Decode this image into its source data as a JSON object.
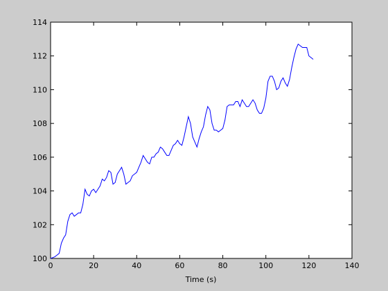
{
  "chart_data": {
    "type": "line",
    "xlabel": "Time (s)",
    "x": [
      0,
      1,
      2,
      3,
      4,
      5,
      6,
      7,
      8,
      9,
      10,
      11,
      12,
      13,
      14,
      15,
      16,
      17,
      18,
      19,
      20,
      21,
      22,
      23,
      24,
      25,
      26,
      27,
      28,
      29,
      30,
      31,
      32,
      33,
      34,
      35,
      36,
      37,
      38,
      39,
      40,
      41,
      42,
      43,
      44,
      45,
      46,
      47,
      48,
      49,
      50,
      51,
      52,
      53,
      54,
      55,
      56,
      57,
      58,
      59,
      60,
      61,
      62,
      63,
      64,
      65,
      66,
      67,
      68,
      69,
      70,
      71,
      72,
      73,
      74,
      75,
      76,
      77,
      78,
      79,
      80,
      81,
      82,
      83,
      84,
      85,
      86,
      87,
      88,
      89,
      90,
      91,
      92,
      93,
      94,
      95,
      96,
      97,
      98,
      99,
      100,
      101,
      102,
      103,
      104,
      105,
      106,
      107,
      108,
      109,
      110,
      111,
      112,
      113,
      114,
      115,
      116,
      117,
      118,
      119,
      120,
      121,
      122
    ],
    "series": [
      {
        "color": "#0000ff",
        "values": [
          100.0,
          100.05,
          100.1,
          100.2,
          100.3,
          100.9,
          101.2,
          101.4,
          102.2,
          102.6,
          102.7,
          102.5,
          102.6,
          102.7,
          102.7,
          103.2,
          104.1,
          103.8,
          103.7,
          104.0,
          104.1,
          103.9,
          104.1,
          104.3,
          104.7,
          104.6,
          104.8,
          105.2,
          105.1,
          104.4,
          104.5,
          105.0,
          105.2,
          105.4,
          105.0,
          104.4,
          104.5,
          104.6,
          104.9,
          105.0,
          105.1,
          105.4,
          105.7,
          106.1,
          105.9,
          105.7,
          105.6,
          106.0,
          106.0,
          106.2,
          106.3,
          106.6,
          106.5,
          106.3,
          106.1,
          106.1,
          106.4,
          106.7,
          106.8,
          107.0,
          106.8,
          106.7,
          107.2,
          107.8,
          108.4,
          108.0,
          107.2,
          106.9,
          106.6,
          107.1,
          107.5,
          107.8,
          108.5,
          109.0,
          108.8,
          108.0,
          107.6,
          107.6,
          107.5,
          107.6,
          107.7,
          108.2,
          109.0,
          109.1,
          109.1,
          109.1,
          109.3,
          109.3,
          109.0,
          109.4,
          109.2,
          109.0,
          109.0,
          109.2,
          109.4,
          109.2,
          108.8,
          108.6,
          108.6,
          108.9,
          109.5,
          110.5,
          110.8,
          110.8,
          110.5,
          110.0,
          110.1,
          110.5,
          110.7,
          110.4,
          110.2,
          110.6,
          111.3,
          111.9,
          112.4,
          112.7,
          112.6,
          112.5,
          112.5,
          112.5,
          112.0,
          111.9,
          111.8
        ]
      }
    ],
    "xlim": [
      0,
      140
    ],
    "xticks": [
      0,
      20,
      40,
      60,
      80,
      100,
      120,
      140
    ],
    "ylim": [
      100,
      114
    ],
    "yticks": [
      100,
      102,
      104,
      106,
      108,
      110,
      112,
      114
    ]
  }
}
